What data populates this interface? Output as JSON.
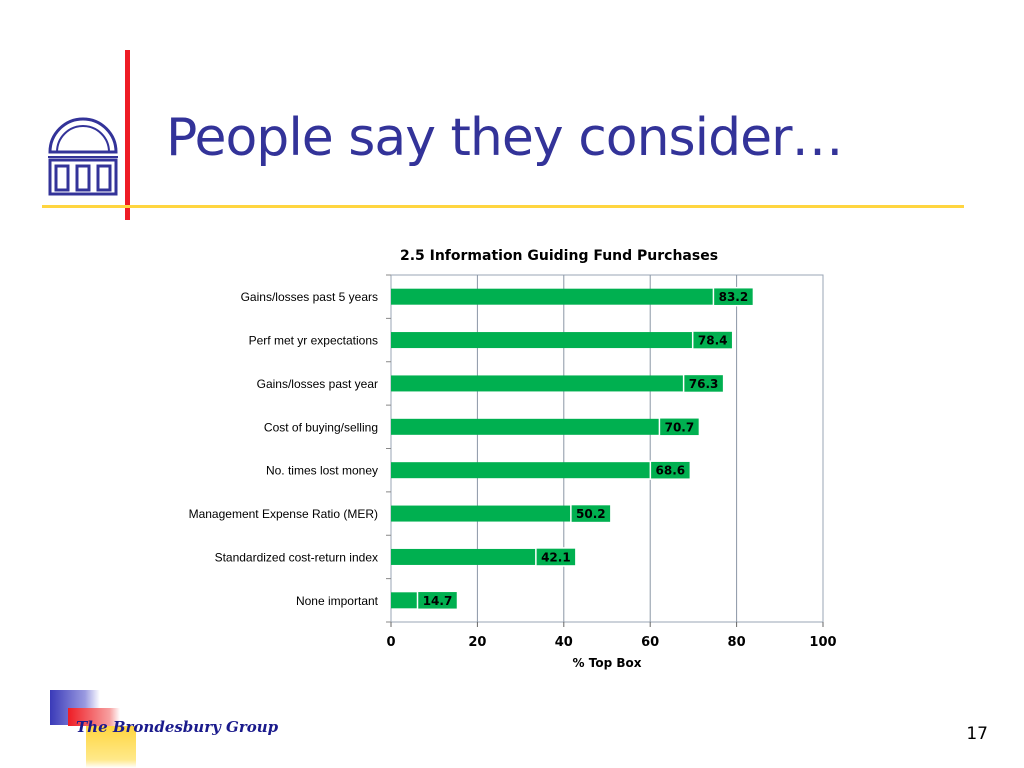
{
  "slide": {
    "title": "People say they consider…",
    "brand": "The Brondesbury Group",
    "page_number": "17",
    "colors": {
      "title": "#333399",
      "accent_red": "#ee1c25",
      "accent_gold": "#ffd53f",
      "bar": "#00b050"
    }
  },
  "chart_data": {
    "type": "bar",
    "orientation": "horizontal",
    "title": "2.5 Information Guiding Fund Purchases",
    "xlabel": "% Top Box",
    "ylabel": "",
    "xlim": [
      0,
      100
    ],
    "xticks": [
      "0",
      "20",
      "40",
      "60",
      "80",
      "100"
    ],
    "grid": true,
    "categories": [
      "Gains/losses past 5 years",
      "Perf met yr expectations",
      "Gains/losses past year",
      "Cost of buying/selling",
      "No. times lost money",
      "Management Expense Ratio (MER)",
      "Standardized cost-return index",
      "None important"
    ],
    "values": [
      83.2,
      78.4,
      76.3,
      70.7,
      68.6,
      50.2,
      42.1,
      14.7
    ],
    "data_labels": [
      "83.2",
      "78.4",
      "76.3",
      "70.7",
      "68.6",
      "50.2",
      "42.1",
      "14.7"
    ]
  }
}
